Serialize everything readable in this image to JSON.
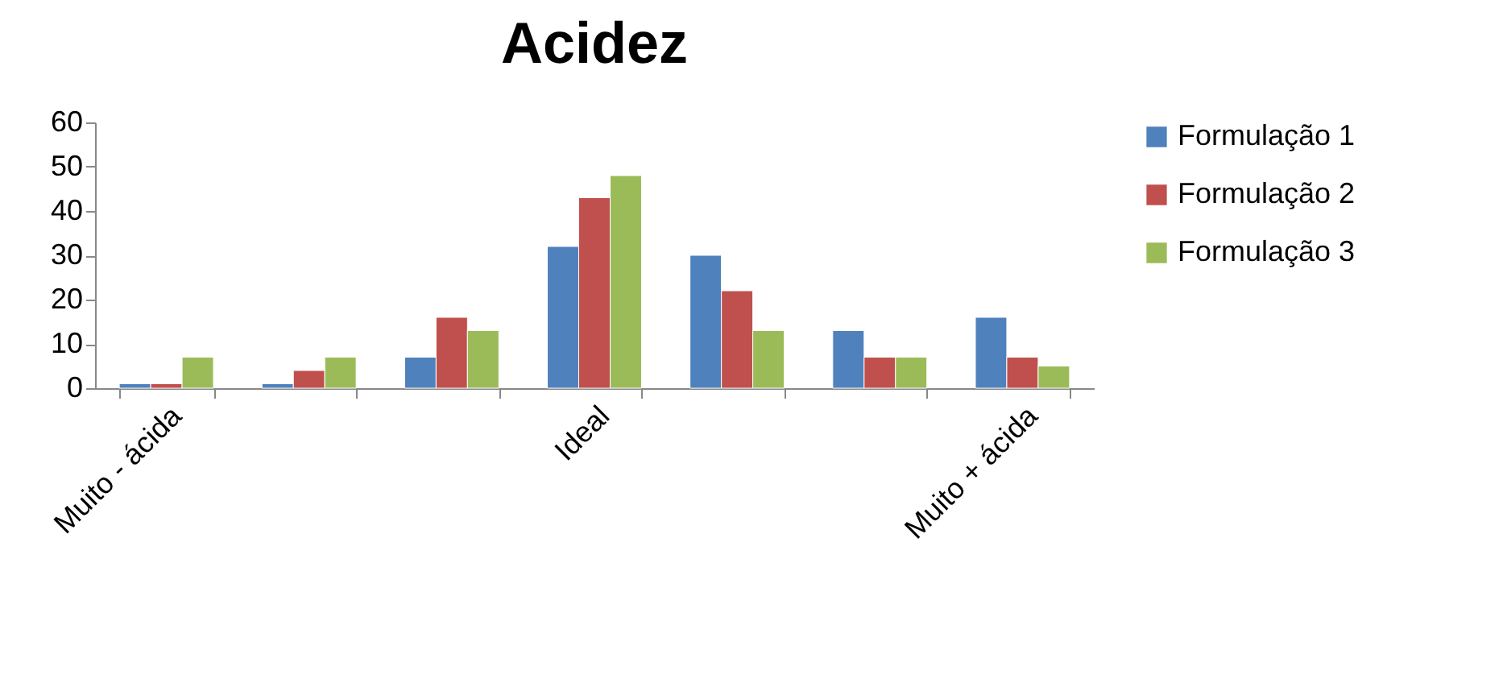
{
  "chart_data": {
    "type": "bar",
    "title": "Acidez",
    "categories": [
      "Muito - ácida",
      null,
      null,
      "Ideal",
      null,
      null,
      "Muito + ácida"
    ],
    "series": [
      {
        "name": "Formulação 1",
        "color": "#4f81bd",
        "values": [
          1,
          1,
          7,
          32,
          30,
          13,
          16
        ]
      },
      {
        "name": "Formulação 2",
        "color": "#c0504d",
        "values": [
          1,
          4,
          16,
          43,
          22,
          7,
          7
        ]
      },
      {
        "name": "Formulação 3",
        "color": "#9bbb59",
        "values": [
          7,
          7,
          13,
          48,
          13,
          7,
          5
        ]
      }
    ],
    "ylim": [
      0,
      60
    ],
    "yticks": [
      0,
      10,
      20,
      30,
      40,
      50,
      60
    ],
    "grid": false,
    "legend": "right"
  }
}
